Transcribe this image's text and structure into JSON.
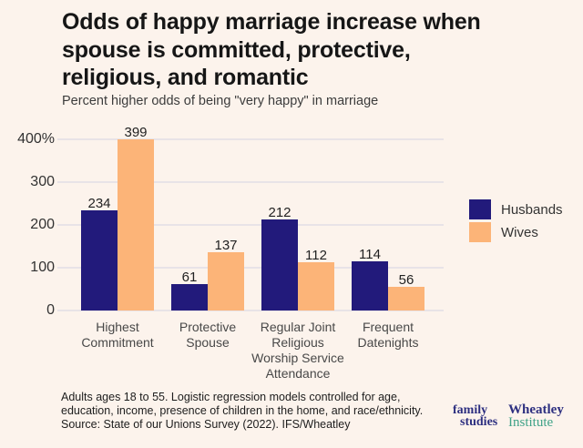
{
  "colors": {
    "background": "#FCF3EC",
    "navy": "#221A7B",
    "peach": "#FCB478",
    "gridline": "#E8E3E7",
    "logo_navy": "#2D2F80",
    "logo_teal": "#3FA287"
  },
  "header": {
    "title_lines": [
      "Odds of happy marriage increase when",
      "spouse is committed, protective,",
      "religious, and romantic"
    ],
    "subtitle": "Percent higher odds of being \"very happy\" in marriage"
  },
  "chart_data": {
    "type": "bar",
    "title": "Odds of happy marriage increase when spouse is committed, protective, religious, and romantic",
    "subtitle": "Percent higher odds of being \"very happy\" in marriage",
    "categories": [
      "Highest Commitment",
      "Protective Spouse",
      "Regular Joint Religious Worship Service Attendance",
      "Frequent Datenights"
    ],
    "categories_display": [
      "Highest\nCommitment",
      "Protective\nSpouse",
      "Regular Joint\nReligious\nWorship Service\nAttendance",
      "Frequent\nDatenights"
    ],
    "series": [
      {
        "name": "Husbands",
        "color": "#221A7B",
        "values": [
          234,
          61,
          212,
          114
        ]
      },
      {
        "name": "Wives",
        "color": "#FCB478",
        "values": [
          399,
          137,
          112,
          56
        ]
      }
    ],
    "ylim": [
      0,
      430
    ],
    "yticks": [
      {
        "value": 0,
        "label": "0"
      },
      {
        "value": 100,
        "label": "100"
      },
      {
        "value": 200,
        "label": "200"
      },
      {
        "value": 300,
        "label": "300"
      },
      {
        "value": 400,
        "label": "400%"
      }
    ],
    "grid": "horizontal",
    "legend_position": "right",
    "value_labels": true
  },
  "footnote": {
    "lines": [
      "Adults ages 18 to 55. Logistic regression models controlled for age,",
      "education, income, presence of children in the home, and race/ethnicity.",
      "Source: State of our Unions Survey (2022). IFS/Wheatley"
    ]
  },
  "logos": {
    "family_studies": {
      "line1": "family",
      "line2": "studies"
    },
    "wheatley": {
      "line1": "Wheatley",
      "line2": "Institute"
    }
  }
}
